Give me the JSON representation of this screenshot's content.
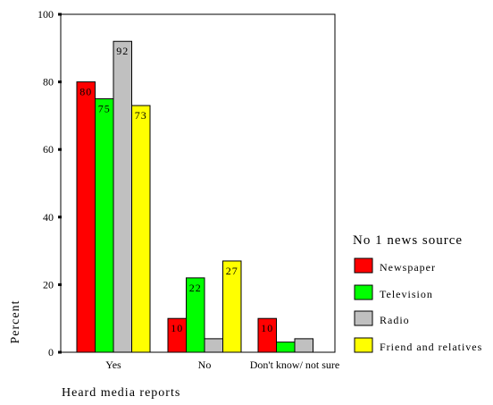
{
  "chart_data": {
    "type": "bar",
    "categories": [
      "Yes",
      "No",
      "Don't know/ not sure"
    ],
    "series": [
      {
        "name": "Newspaper",
        "values": [
          80,
          10,
          10
        ],
        "color": "#ff0000"
      },
      {
        "name": "Television",
        "values": [
          75,
          22,
          3
        ],
        "color": "#00ff00"
      },
      {
        "name": "Radio",
        "values": [
          92,
          4,
          4
        ],
        "color": "#c0c0c0"
      },
      {
        "name": "Friend and relatives",
        "values": [
          73,
          27,
          null
        ],
        "color": "#ffff00"
      }
    ],
    "data_labels": [
      [
        "80",
        "75",
        "92",
        "73"
      ],
      [
        "10",
        "22",
        "",
        "27"
      ],
      [
        "10",
        "",
        "",
        ""
      ]
    ],
    "xlabel": "Heard media reports",
    "ylabel": "Percent",
    "ylim": [
      0,
      100
    ],
    "yticks": [
      "0",
      "20",
      "40",
      "60",
      "80",
      "100"
    ],
    "legend_title": "No 1 news source",
    "legend_position": "right",
    "grid": false
  }
}
